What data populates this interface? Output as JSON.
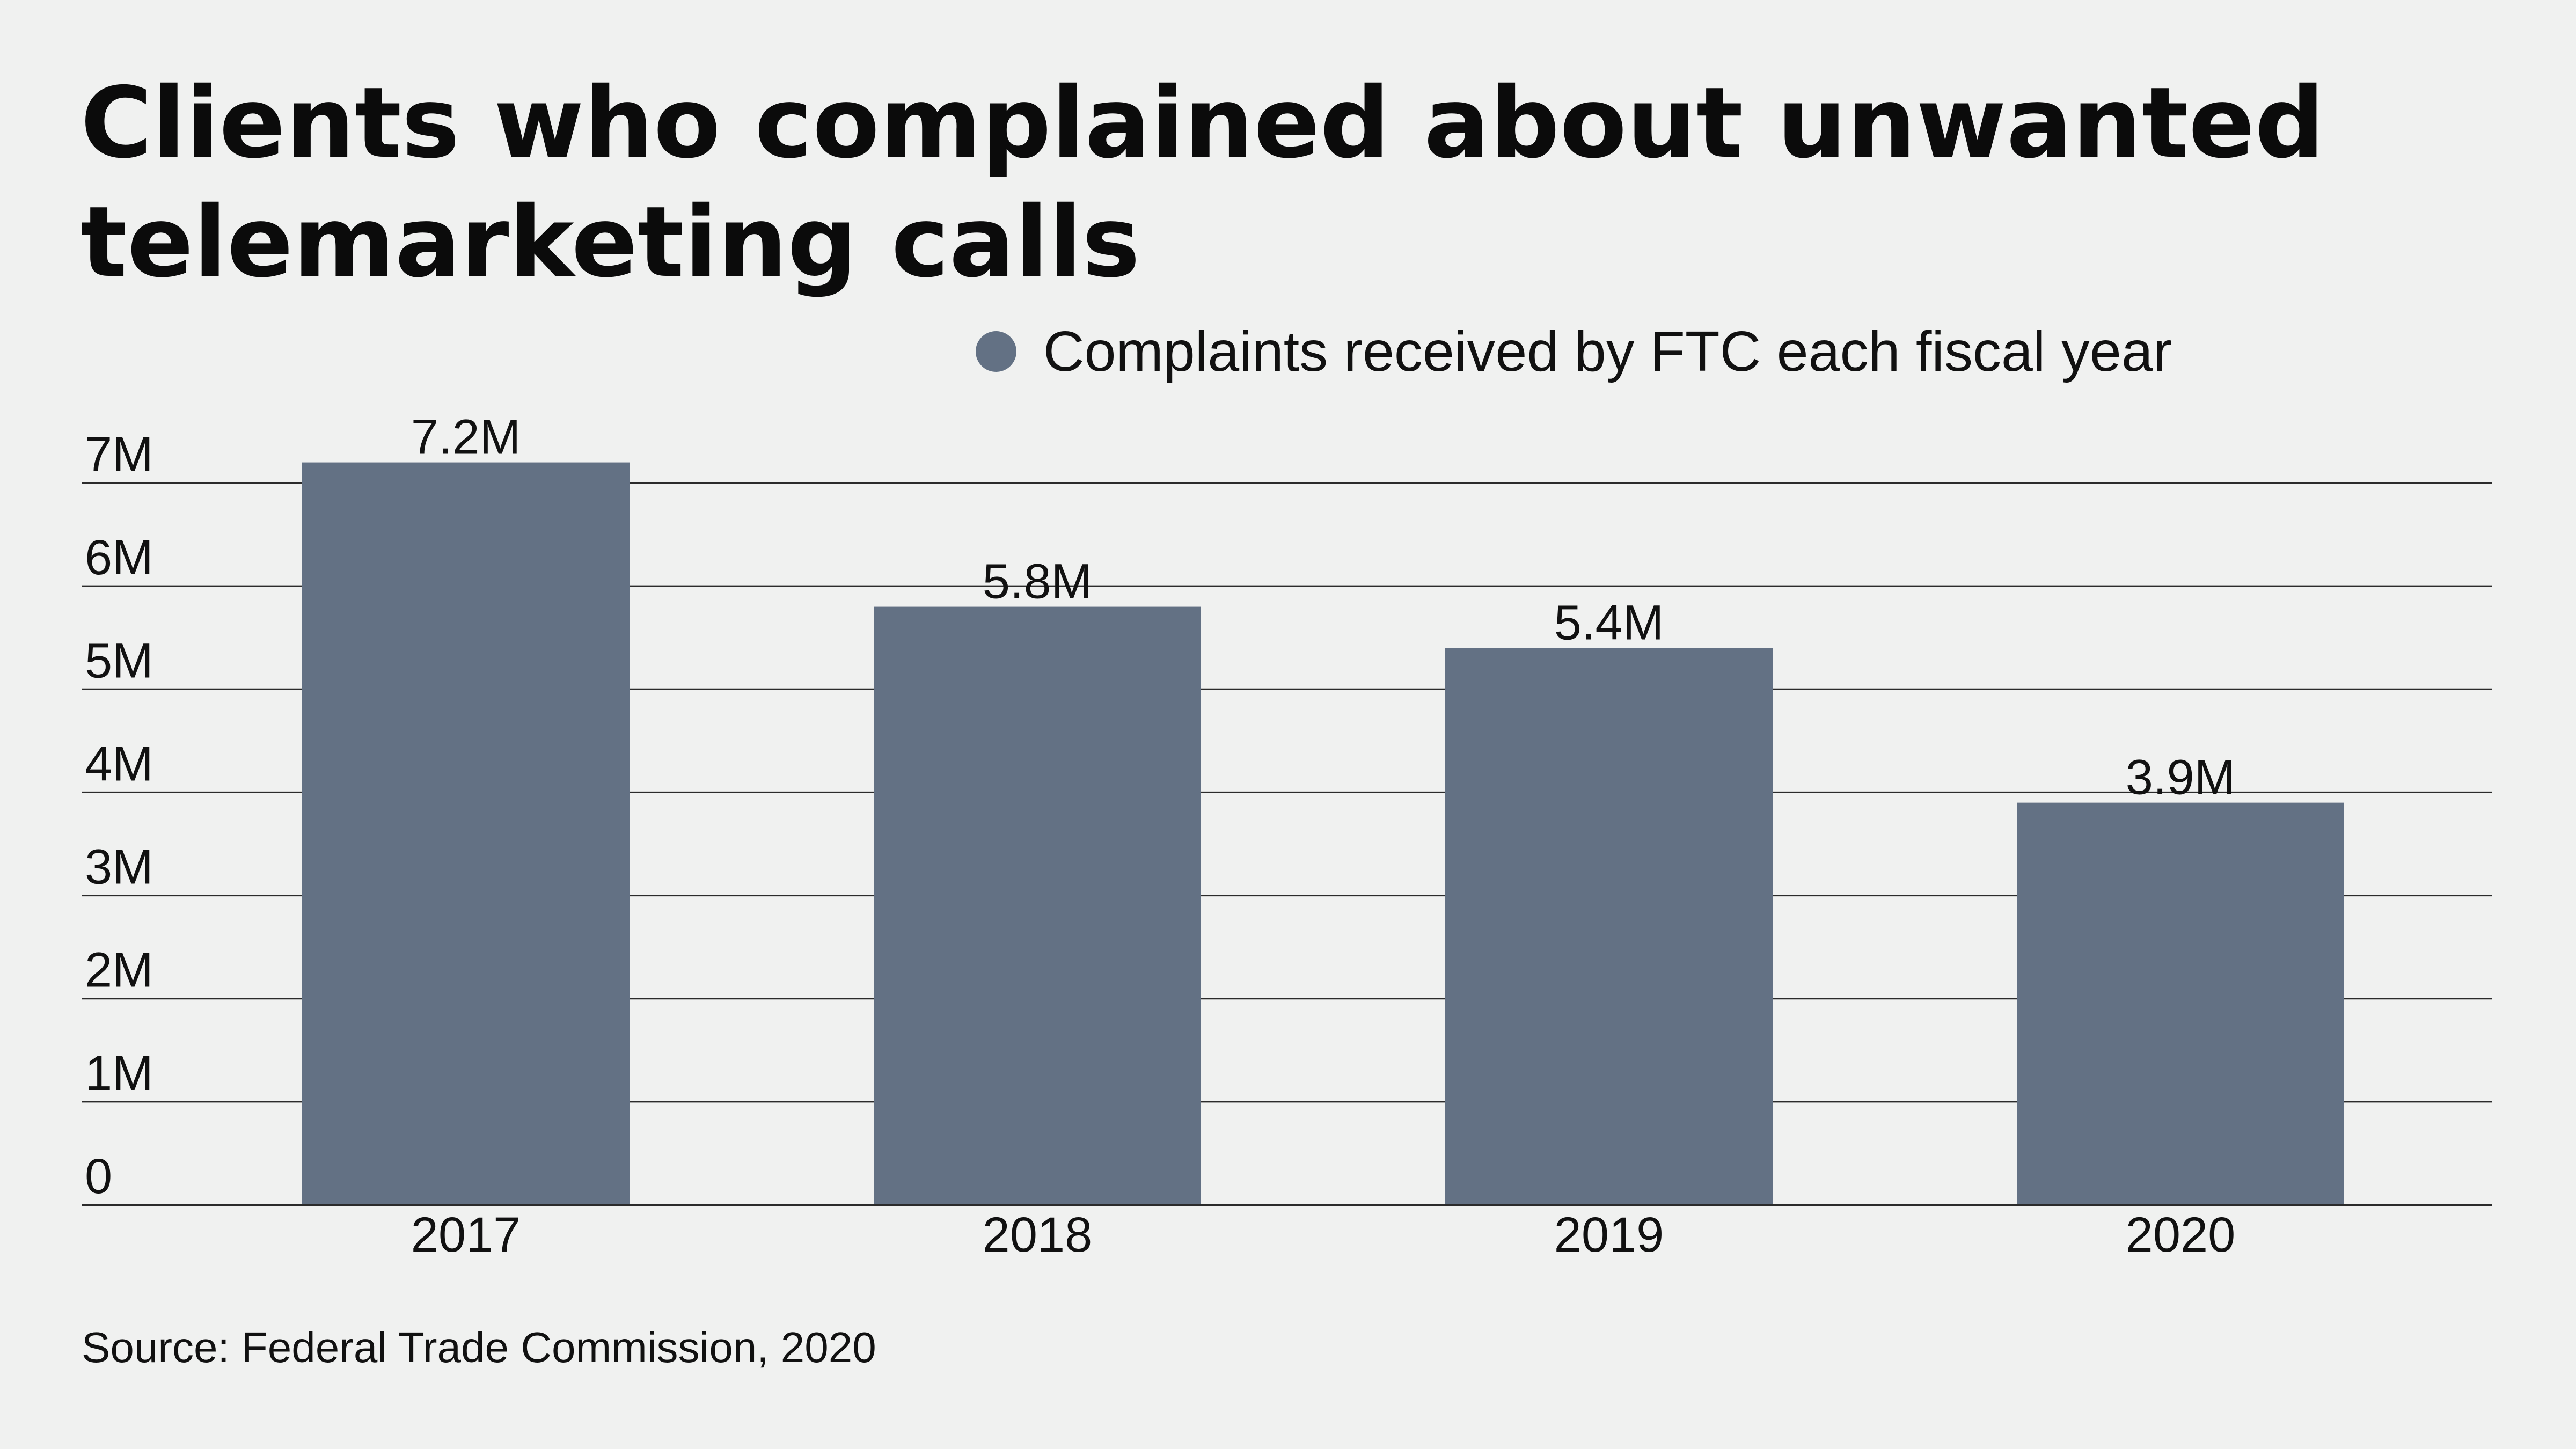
{
  "colors": {
    "background": "#f0f1f0",
    "bar": "#637184",
    "gridline": "#2b2b2b",
    "text": "#111111"
  },
  "source": "Source: Federal Trade Commission, 2020",
  "chart_data": {
    "type": "bar",
    "title": "Clients who complained about unwanted telemarketing calls",
    "categories": [
      "2017",
      "2018",
      "2019",
      "2020"
    ],
    "series": [
      {
        "name": "Complaints received by FTC each fiscal year",
        "values": [
          7.2,
          5.8,
          5.4,
          3.9
        ],
        "data_labels": [
          "7.2M",
          "5.8M",
          "5.4M",
          "3.9M"
        ],
        "color": "#637184"
      }
    ],
    "yticks": [
      0,
      1,
      2,
      3,
      4,
      5,
      6,
      7
    ],
    "ytick_labels": [
      "0",
      "1M",
      "2M",
      "3M",
      "4M",
      "5M",
      "6M",
      "7M"
    ],
    "ylim": [
      0,
      7
    ],
    "xlabel": "",
    "ylabel": "",
    "grid": true,
    "legend_position": "top-right"
  }
}
